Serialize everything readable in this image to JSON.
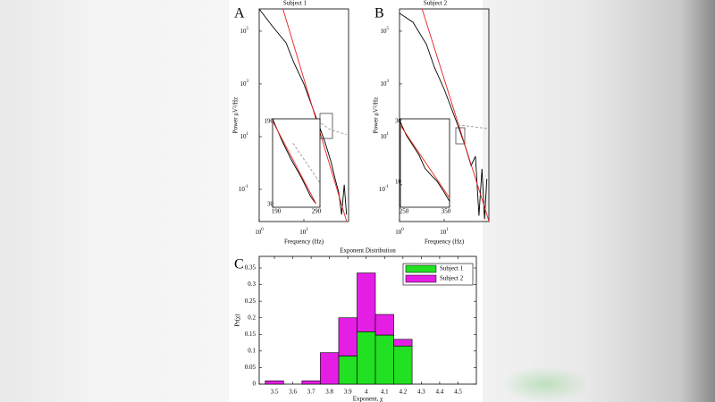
{
  "chart_data": [
    {
      "type": "line",
      "panel": "A",
      "title": "Subject 1",
      "xlabel": "Frequency (Hz)",
      "ylabel": "Power μV²/Hz",
      "log_x": true,
      "log_y": true,
      "xlim": [
        1,
        100
      ],
      "ylim": [
        0.006,
        700000
      ],
      "xticks": [
        {
          "value": 1,
          "label": "10",
          "exponent": "0"
        },
        {
          "value": 10,
          "label": "10",
          "exponent": "1"
        }
      ],
      "yticks": [
        {
          "value": 0.1,
          "label": "10",
          "exponent": "-1"
        },
        {
          "value": 10,
          "label": "10",
          "exponent": "1"
        },
        {
          "value": 1000,
          "label": "10",
          "exponent": "3"
        },
        {
          "value": 100000,
          "label": "10",
          "exponent": "5"
        }
      ],
      "series": [
        {
          "color": "#000000",
          "x": [
            1,
            2,
            4,
            6,
            10,
            20,
            30,
            40,
            50,
            60,
            70,
            80,
            90
          ],
          "values": [
            700000,
            150000,
            36000,
            6300,
            1000,
            40,
            5.8,
            1.2,
            0.25,
            0.08,
            0.011,
            0.15,
            0.011
          ]
        },
        {
          "color": "#e8221d",
          "x": [
            3.4,
            90
          ],
          "values": [
            700000,
            0.0063
          ]
        },
        {
          "color": "#999999",
          "dashed": true,
          "x": [
            20,
            40,
            90
          ],
          "values": [
            40,
            18,
            12
          ]
        }
      ],
      "inset": {
        "xlim": [
          190,
          290
        ],
        "ylim": [
          30,
          190
        ],
        "xticks": [
          190,
          290
        ],
        "yticks": [
          30,
          190
        ],
        "series": [
          {
            "color": "#000000",
            "x": [
              190,
              210,
              230,
              250,
              270,
              280
            ],
            "values": [
              190,
              150,
              115,
              85,
              50,
              38
            ]
          },
          {
            "color": "#e8221d",
            "x": [
              190,
              282
            ],
            "values": [
              186,
              36
            ]
          },
          {
            "color": "#999999",
            "dashed": true,
            "x": [
              233,
              260,
              290
            ],
            "values": [
              146,
              112,
              74
            ]
          }
        ]
      }
    },
    {
      "type": "line",
      "panel": "B",
      "title": "Subject 2",
      "xlabel": "Frequency (Hz)",
      "ylabel": "Power μV²/Hz",
      "log_x": true,
      "log_y": true,
      "xlim": [
        1,
        100
      ],
      "ylim": [
        0.006,
        700000
      ],
      "xticks": [
        {
          "value": 1,
          "label": "10",
          "exponent": "0"
        },
        {
          "value": 10,
          "label": "10",
          "exponent": "1"
        }
      ],
      "yticks": [
        {
          "value": 0.1,
          "label": "10",
          "exponent": "-1"
        },
        {
          "value": 10,
          "label": "10",
          "exponent": "1"
        },
        {
          "value": 1000,
          "label": "10",
          "exponent": "3"
        },
        {
          "value": 100000,
          "label": "10",
          "exponent": "5"
        }
      ],
      "series": [
        {
          "color": "#000000",
          "x": [
            1,
            2,
            4,
            6,
            10,
            20,
            30,
            40,
            50,
            60,
            70,
            80,
            90
          ],
          "values": [
            480000,
            220000,
            32000,
            4400,
            630,
            28,
            4,
            0.8,
            1.8,
            0.01,
            0.6,
            0.0075,
            0.25
          ]
        },
        {
          "color": "#e8221d",
          "x": [
            3.2,
            100
          ],
          "values": [
            700000,
            0.0063
          ]
        },
        {
          "color": "#999999",
          "dashed": true,
          "x": [
            20,
            100
          ],
          "values": [
            28,
            20
          ]
        }
      ],
      "inset": {
        "xlim": [
          250,
          350
        ],
        "ylim": [
          3.2,
          30
        ],
        "xticks": [
          250,
          350
        ],
        "yticks": [
          10,
          30
        ],
        "series": [
          {
            "color": "#000000",
            "x": [
              250,
              262,
              275,
              288,
              300,
              312,
              325,
              338,
              350
            ],
            "values": [
              29,
              25,
              22,
              19,
              15,
              13,
              11,
              8,
              5
            ]
          },
          {
            "color": "#e8221d",
            "x": [
              250,
              350
            ],
            "values": [
              28,
              6
            ]
          }
        ]
      }
    },
    {
      "type": "histogram",
      "panel": "C",
      "title": "Exponent Distribution",
      "xlabel": "Exponent, χ",
      "ylabel": "Pr(χ)",
      "stacked": true,
      "legend": "upper right",
      "bins": [
        3.45,
        3.55,
        3.65,
        3.75,
        3.85,
        3.95,
        4.05,
        4.15,
        4.25
      ],
      "series": [
        {
          "name": "Subject 1",
          "color": "#22e022",
          "values": [
            0,
            0,
            0,
            0,
            0.085,
            0.158,
            0.148,
            0.115
          ]
        },
        {
          "name": "Subject 2",
          "color": "#e51ee5",
          "values": [
            0.01,
            0,
            0.01,
            0.095,
            0.115,
            0.177,
            0.062,
            0.02
          ]
        }
      ],
      "xlim": [
        3.417,
        4.6
      ],
      "ylim": [
        0,
        0.385
      ],
      "xticks": [
        3.5,
        3.6,
        3.7,
        3.8,
        3.9,
        4,
        4.1,
        4.2,
        4.3,
        4.4,
        4.5
      ],
      "yticks": [
        0,
        0.05,
        0.1,
        0.15,
        0.2,
        0.25,
        0.3,
        0.35
      ]
    }
  ]
}
